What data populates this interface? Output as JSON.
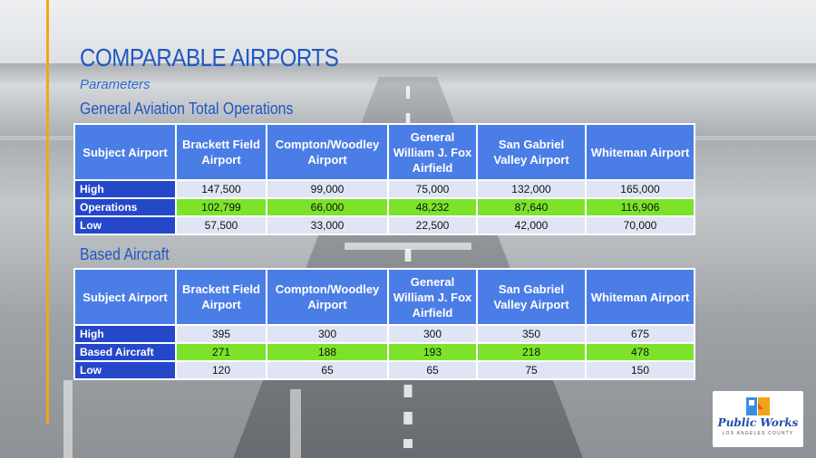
{
  "header": {
    "title": "COMPARABLE AIRPORTS",
    "subtitle": "Parameters"
  },
  "colors": {
    "title": "#1f58c2",
    "header_fill": "#4b7de6",
    "row_label_fill": "#2548c9",
    "row_light": "#dfe5f5",
    "row_green": "#7ce32a",
    "accent_line": "#f3a51c"
  },
  "columns": [
    "Subject Airport",
    "Brackett Field Airport",
    "Compton/Woodley Airport",
    "General William J. Fox Airfield",
    "San Gabriel Valley Airport",
    "Whiteman Airport"
  ],
  "operations_table": {
    "title": "General Aviation Total Operations",
    "rows": [
      {
        "label": "High",
        "values": [
          "147,500",
          "99,000",
          "75,000",
          "132,000",
          "165,000"
        ]
      },
      {
        "label": "Operations",
        "values": [
          "102,799",
          "66,000",
          "48,232",
          "87,640",
          "116,906"
        ]
      },
      {
        "label": "Low",
        "values": [
          "57,500",
          "33,000",
          "22,500",
          "42,000",
          "70,000"
        ]
      }
    ]
  },
  "aircraft_table": {
    "title": "Based Aircraft",
    "rows": [
      {
        "label": "High",
        "values": [
          "395",
          "300",
          "300",
          "350",
          "675"
        ]
      },
      {
        "label": "Based Aircraft",
        "values": [
          "271",
          "188",
          "193",
          "218",
          "478"
        ]
      },
      {
        "label": "Low",
        "values": [
          "120",
          "65",
          "65",
          "75",
          "150"
        ]
      }
    ]
  },
  "logo": {
    "name": "Public Works",
    "county": "LOS ANGELES COUNTY"
  }
}
